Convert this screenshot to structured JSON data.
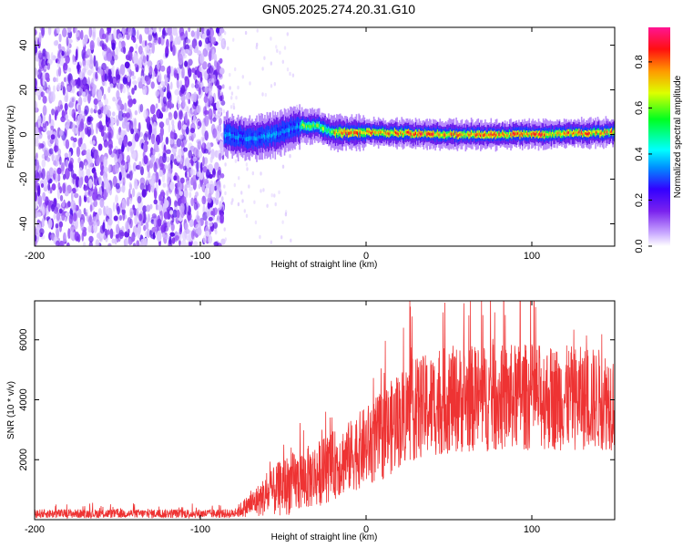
{
  "title": "GN05.2025.274.20.31.G10",
  "chart_data": [
    {
      "type": "heatmap",
      "name": "spectrogram",
      "xlabel": "Height of straight line (km)",
      "ylabel": "Frequency (Hz)",
      "xlim": [
        -200,
        150
      ],
      "ylim": [
        -50,
        48
      ],
      "xticks": [
        -200,
        -100,
        0,
        100
      ],
      "xtick_labels": [
        "-200",
        "-100",
        "0",
        "100"
      ],
      "yticks": [
        -40,
        -20,
        0,
        20,
        40
      ],
      "ytick_labels": [
        "-40",
        "-20",
        "0",
        "20",
        "40"
      ],
      "noise_region_x": [
        -200,
        -86
      ],
      "signal_start_x": -86,
      "signal_track": [
        {
          "x": -86,
          "freq": 0
        },
        {
          "x": -70,
          "freq": -2
        },
        {
          "x": -55,
          "freq": 0
        },
        {
          "x": -40,
          "freq": 4
        },
        {
          "x": -30,
          "freq": 4
        },
        {
          "x": -20,
          "freq": 1
        },
        {
          "x": 0,
          "freq": 1
        },
        {
          "x": 50,
          "freq": 0
        },
        {
          "x": 100,
          "freq": 0
        },
        {
          "x": 150,
          "freq": 1
        }
      ],
      "colorbar": {
        "label": "Normalized spectral amplitude",
        "min": 0,
        "max": 0.95,
        "ticks": [
          0.0,
          0.2,
          0.4,
          0.6,
          0.8
        ],
        "tick_labels": [
          "0.0",
          "0.2",
          "0.4",
          "0.6",
          "0.8"
        ],
        "colormap": "rainbow (white-violet-blue-cyan-green-yellow-red-magenta)"
      }
    },
    {
      "type": "line",
      "name": "snr",
      "xlabel": "Height of straight line (km)",
      "ylabel": "SNR (10 * v/v)",
      "xlim": [
        -200,
        150
      ],
      "ylim": [
        0,
        7300
      ],
      "xticks": [
        -200,
        -100,
        0,
        100
      ],
      "xtick_labels": [
        "-200",
        "-100",
        "0",
        "100"
      ],
      "yticks": [
        2000,
        4000,
        6000
      ],
      "ytick_labels": [
        "2000",
        "4000",
        "6000"
      ],
      "color": "#ee3333",
      "envelope": [
        {
          "x": -200,
          "mean": 200,
          "spread": 150
        },
        {
          "x": -80,
          "mean": 200,
          "spread": 150
        },
        {
          "x": -70,
          "mean": 500,
          "spread": 400
        },
        {
          "x": -50,
          "mean": 1100,
          "spread": 1000
        },
        {
          "x": -30,
          "mean": 1500,
          "spread": 1100
        },
        {
          "x": -10,
          "mean": 2100,
          "spread": 1200
        },
        {
          "x": 10,
          "mean": 2800,
          "spread": 1500
        },
        {
          "x": 25,
          "mean": 3600,
          "spread": 1700
        },
        {
          "x": 50,
          "mean": 4000,
          "spread": 1800
        },
        {
          "x": 100,
          "mean": 4100,
          "spread": 1800
        },
        {
          "x": 150,
          "mean": 4000,
          "spread": 1700
        }
      ],
      "peak": {
        "x": 93,
        "y": 7300
      }
    }
  ]
}
